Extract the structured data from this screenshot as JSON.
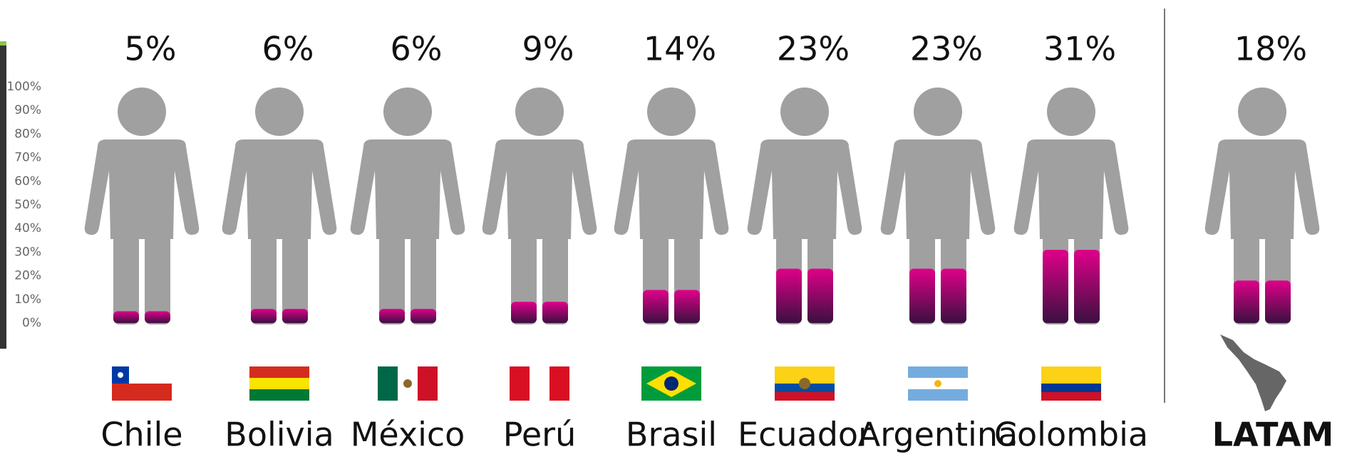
{
  "chart_data": {
    "type": "pictograph",
    "categories": [
      "Chile",
      "Bolivia",
      "México",
      "Perú",
      "Brasil",
      "Ecuador",
      "Argentina",
      "Colombia",
      "LATAM"
    ],
    "values": [
      5,
      6,
      6,
      9,
      14,
      23,
      23,
      31,
      18
    ],
    "value_labels": [
      "5%",
      "6%",
      "6%",
      "9%",
      "14%",
      "23%",
      "23%",
      "31%",
      "18%"
    ],
    "ylim": [
      0,
      100
    ],
    "yticks": [
      {
        "value": 0,
        "label": "0%"
      },
      {
        "value": 10,
        "label": "10%"
      },
      {
        "value": 20,
        "label": "20%"
      },
      {
        "value": 30,
        "label": "30%"
      },
      {
        "value": 40,
        "label": "40%"
      },
      {
        "value": 50,
        "label": "50%"
      },
      {
        "value": 60,
        "label": "60%"
      },
      {
        "value": 70,
        "label": "70%"
      },
      {
        "value": 80,
        "label": "80%"
      },
      {
        "value": 90,
        "label": "90%"
      },
      {
        "value": 100,
        "label": "100%"
      }
    ],
    "grid": true,
    "color": "#e0008a",
    "figure_color": "#a0a0a0"
  }
}
